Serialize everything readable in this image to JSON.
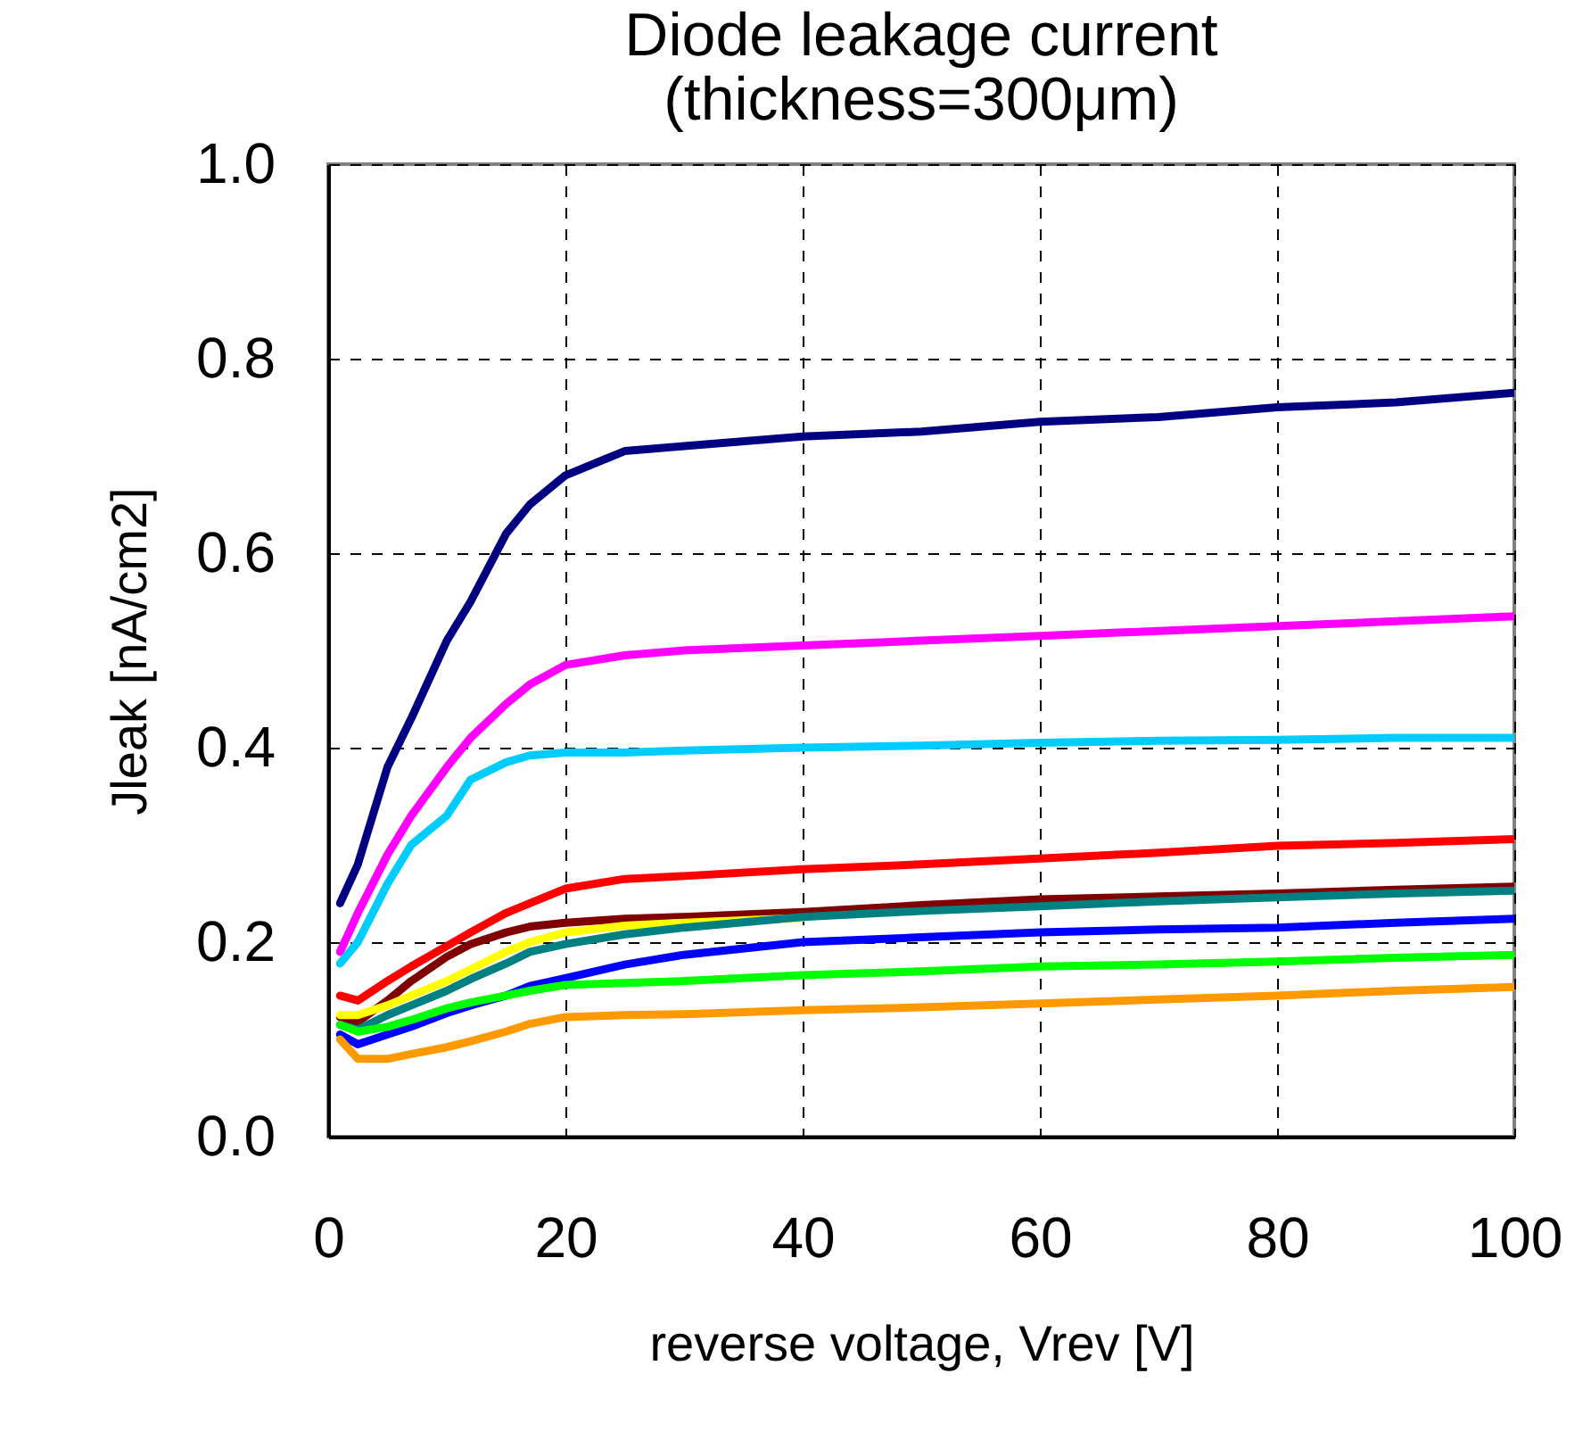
{
  "chart_data": {
    "type": "line",
    "title": "Diode leakage current",
    "subtitle": "(thickness=300μm)",
    "xlabel": "reverse voltage, Vrev [V]",
    "ylabel": "Jleak [nA/cm2]",
    "x": [
      1,
      2.5,
      5,
      7,
      10,
      12,
      15,
      17,
      20,
      25,
      30,
      40,
      50,
      60,
      70,
      80,
      90,
      100
    ],
    "series": [
      {
        "color": "#000080",
        "values": [
          0.24,
          0.28,
          0.38,
          0.43,
          0.51,
          0.55,
          0.62,
          0.65,
          0.68,
          0.705,
          0.71,
          0.72,
          0.725,
          0.735,
          0.74,
          0.75,
          0.755,
          0.765
        ]
      },
      {
        "color": "#ff00ff",
        "values": [
          0.19,
          0.23,
          0.29,
          0.33,
          0.38,
          0.41,
          0.445,
          0.465,
          0.485,
          0.495,
          0.5,
          0.505,
          0.51,
          0.515,
          0.52,
          0.525,
          0.53,
          0.535
        ]
      },
      {
        "color": "#00ccff",
        "values": [
          0.178,
          0.2,
          0.26,
          0.3,
          0.33,
          0.367,
          0.385,
          0.392,
          0.395,
          0.395,
          0.397,
          0.4,
          0.402,
          0.405,
          0.407,
          0.408,
          0.41,
          0.41
        ]
      },
      {
        "color": "#ff0000",
        "values": [
          0.145,
          0.14,
          0.16,
          0.175,
          0.196,
          0.21,
          0.23,
          0.24,
          0.255,
          0.265,
          0.268,
          0.275,
          0.28,
          0.286,
          0.292,
          0.299,
          0.302,
          0.306
        ]
      },
      {
        "color": "#800000",
        "values": [
          0.123,
          0.118,
          0.14,
          0.16,
          0.185,
          0.198,
          0.21,
          0.216,
          0.22,
          0.224,
          0.226,
          0.231,
          0.238,
          0.244,
          0.247,
          0.25,
          0.254,
          0.257
        ]
      },
      {
        "color": "#ffff00",
        "values": [
          0.125,
          0.125,
          0.135,
          0.145,
          0.16,
          0.172,
          0.19,
          0.2,
          0.21,
          0.217,
          0.22,
          0.225,
          null,
          null,
          null,
          null,
          null,
          null
        ]
      },
      {
        "color": "#008080",
        "values": [
          0.115,
          0.11,
          0.125,
          0.135,
          0.15,
          0.162,
          0.178,
          0.19,
          0.198,
          0.208,
          0.215,
          0.226,
          0.232,
          0.237,
          0.242,
          0.246,
          0.25,
          0.253
        ]
      },
      {
        "color": "#0000ff",
        "values": [
          0.105,
          0.095,
          0.105,
          0.113,
          0.127,
          0.135,
          0.145,
          0.155,
          0.163,
          0.177,
          0.187,
          0.2,
          0.205,
          0.21,
          0.213,
          0.215,
          0.22,
          0.224
        ]
      },
      {
        "color": "#00ff00",
        "values": [
          0.115,
          0.108,
          0.113,
          0.12,
          0.132,
          0.138,
          0.145,
          0.15,
          0.156,
          0.158,
          0.16,
          0.166,
          0.17,
          0.175,
          0.177,
          0.18,
          0.184,
          0.187
        ]
      },
      {
        "color": "#ff9900",
        "values": [
          0.1,
          0.08,
          0.08,
          0.085,
          0.092,
          0.098,
          0.108,
          0.116,
          0.123,
          0.125,
          0.126,
          0.13,
          0.133,
          0.137,
          0.141,
          0.145,
          0.15,
          0.154
        ]
      }
    ],
    "xlim": [
      0,
      100
    ],
    "xticks": [
      0,
      20,
      40,
      60,
      80,
      100
    ],
    "ylim": [
      0,
      1
    ],
    "yticks": [
      {
        "value": 0,
        "label": "0.0"
      },
      0.2,
      0.4,
      0.6,
      0.8,
      {
        "value": 1,
        "label": "1.0"
      }
    ],
    "grid": true,
    "legend": false
  }
}
